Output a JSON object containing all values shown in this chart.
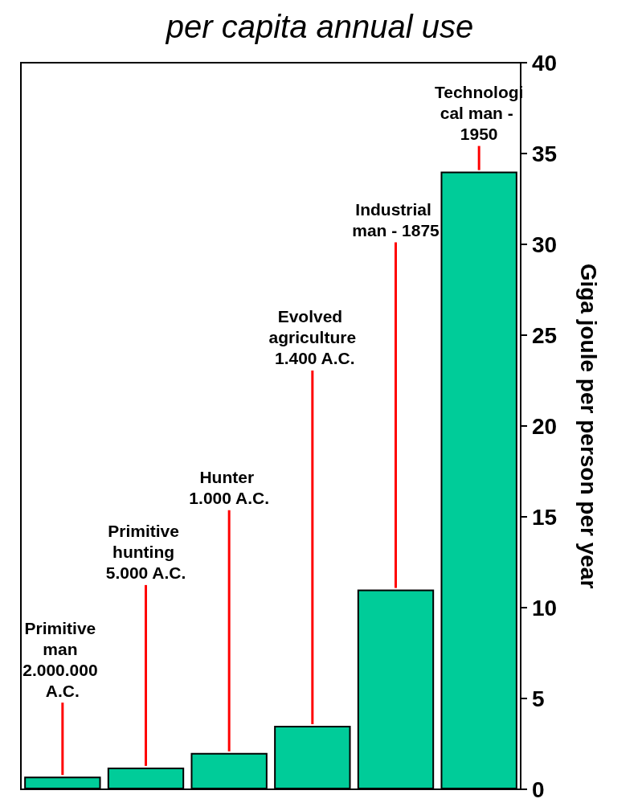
{
  "chart_data": {
    "type": "bar",
    "title": "per capita annual use",
    "ylabel": "Giga joule per person per year",
    "categories": [
      "Primitive man 2.000.000 A.C.",
      "Primitive hunting 5.000 A.C.",
      "Hunter 1.000 A.C.",
      "Evolved agriculture 1.400 A.C.",
      "Industrial man - 1875",
      "Technological man - 1950"
    ],
    "values": [
      0.7,
      1.2,
      2,
      3.5,
      11,
      34
    ],
    "color": "#00cc99",
    "ylim": [
      0,
      40
    ],
    "yticks": [
      0,
      5,
      10,
      15,
      20,
      25,
      30,
      35,
      40
    ],
    "grid": false
  }
}
